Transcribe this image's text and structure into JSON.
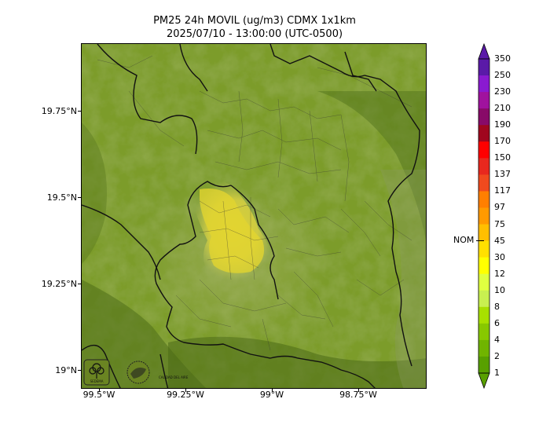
{
  "title": {
    "line1": "PM25 24h MOVIL (ug/m3) CDMX 1x1km",
    "line2": "2025/07/10 - 13:00:00 (UTC-0500)"
  },
  "axes": {
    "y_ticks": [
      "19.75°N",
      "19.5°N",
      "19.25°N",
      "19°N"
    ],
    "x_ticks": [
      "99.5°W",
      "99.25°W",
      "99°W",
      "98.75°W"
    ]
  },
  "colorbar": {
    "labels": [
      "350",
      "250",
      "230",
      "210",
      "190",
      "170",
      "150",
      "137",
      "117",
      "97",
      "75",
      "45",
      "30",
      "12",
      "10",
      "8",
      "6",
      "4",
      "2",
      "1"
    ],
    "colors": [
      "#5a1aa8",
      "#8a1ad0",
      "#a0129e",
      "#880a68",
      "#a0061e",
      "#ff0000",
      "#e8281e",
      "#f04a1e",
      "#ff7f00",
      "#ff9a00",
      "#ffbf00",
      "#ffe000",
      "#ffff00",
      "#e0ff40",
      "#c8f050",
      "#a8e000",
      "#88c800",
      "#70b400",
      "#58a000"
    ],
    "nom_label": "NOM"
  },
  "logos": {
    "left": "SEDEMA",
    "right": "CALIDAD DEL AIRE"
  },
  "colors": {
    "terrain_base": "#7a9a28",
    "terrain_dark": "#4e6e1a",
    "plume": "#e6d83a",
    "plume_edge": "#c8c850"
  }
}
